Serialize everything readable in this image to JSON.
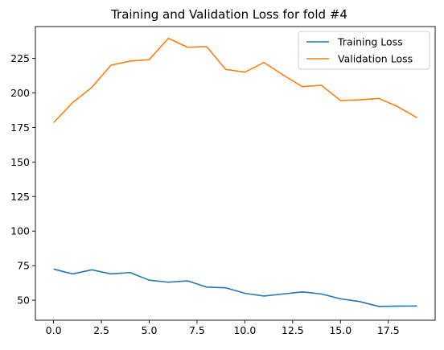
{
  "chart_data": {
    "type": "line",
    "title": "Training and Validation Loss for fold #4",
    "xlabel": "",
    "ylabel": "",
    "xlim": [
      -0.95,
      19.95
    ],
    "ylim": [
      35.5,
      248
    ],
    "xticks": [
      0.0,
      2.5,
      5.0,
      7.5,
      10.0,
      12.5,
      15.0,
      17.5
    ],
    "xtick_labels": [
      "0.0",
      "2.5",
      "5.0",
      "7.5",
      "10.0",
      "12.5",
      "15.0",
      "17.5"
    ],
    "yticks": [
      50,
      75,
      100,
      125,
      150,
      175,
      200,
      225
    ],
    "ytick_labels": [
      "50",
      "75",
      "100",
      "125",
      "150",
      "175",
      "200",
      "225"
    ],
    "grid": false,
    "legend_position": "top-right",
    "x": [
      0,
      1,
      2,
      3,
      4,
      5,
      6,
      7,
      8,
      9,
      10,
      11,
      12,
      13,
      14,
      15,
      16,
      17,
      18,
      19
    ],
    "series": [
      {
        "name": "Training Loss",
        "color": "#1f77b4",
        "values": [
          72.5,
          69.0,
          72.0,
          69.0,
          70.0,
          64.5,
          63.0,
          64.0,
          59.5,
          59.0,
          55.0,
          53.0,
          54.5,
          56.0,
          54.5,
          51.0,
          49.0,
          45.5,
          45.7,
          45.8
        ]
      },
      {
        "name": "Validation Loss",
        "color": "#ff7f0e",
        "values": [
          178.5,
          193.0,
          204.0,
          220.0,
          223.0,
          224.0,
          239.5,
          233.0,
          233.5,
          217.0,
          215.0,
          222.0,
          213.0,
          204.5,
          205.5,
          194.5,
          195.0,
          196.0,
          190.0,
          182.0
        ]
      }
    ]
  }
}
